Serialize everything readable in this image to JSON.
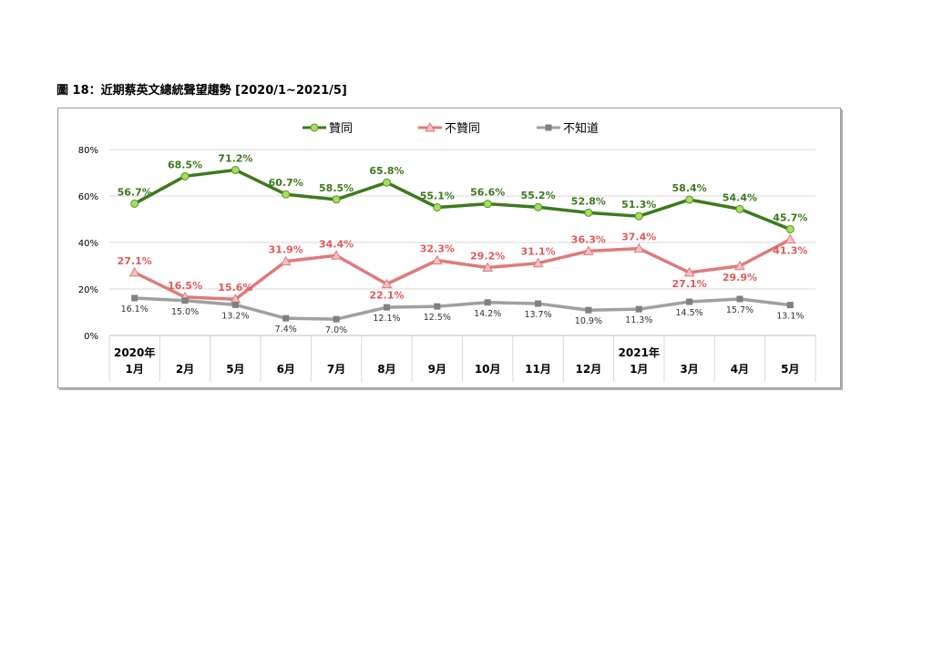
{
  "figure": {
    "title": "圖 18：近期蔡英文總統聲望趨勢  [2020/1~2021/5]"
  },
  "chart_data": {
    "type": "line",
    "title": "圖 18：近期蔡英文總統聲望趨勢  [2020/1~2021/5]",
    "categories": [
      "1月",
      "2月",
      "5月",
      "6月",
      "7月",
      "8月",
      "9月",
      "10月",
      "11月",
      "12月",
      "1月",
      "3月",
      "4月",
      "5月"
    ],
    "year_labels": [
      {
        "index": 0,
        "label": "2020年"
      },
      {
        "index": 10,
        "label": "2021年"
      }
    ],
    "ylim": [
      0,
      80
    ],
    "yticks": [
      "0%",
      "20%",
      "40%",
      "60%",
      "80%"
    ],
    "ytick_values": [
      0,
      20,
      40,
      60,
      80
    ],
    "grid": true,
    "legend_position": "top",
    "series": [
      {
        "name": "贊同",
        "color": "#3d7a1e",
        "marker": "circle",
        "marker_color": "#a6e05a",
        "label_color": "#3d7a1e",
        "values": [
          56.7,
          68.5,
          71.2,
          60.7,
          58.5,
          65.8,
          55.1,
          56.6,
          55.2,
          52.8,
          51.3,
          58.4,
          54.4,
          45.7
        ],
        "labels": [
          "56.7%",
          "68.5%",
          "71.2%",
          "60.7%",
          "58.5%",
          "65.8%",
          "55.1%",
          "56.6%",
          "55.2%",
          "52.8%",
          "51.3%",
          "58.4%",
          "54.4%",
          "45.7%"
        ]
      },
      {
        "name": "不贊同",
        "color": "#e07a7a",
        "marker": "triangle",
        "marker_color": "#f4c2c2",
        "label_color": "#e05a5a",
        "values": [
          27.1,
          16.5,
          15.6,
          31.9,
          34.4,
          22.1,
          32.3,
          29.2,
          31.1,
          36.3,
          37.4,
          27.1,
          29.9,
          41.3
        ],
        "labels": [
          "27.1%",
          "16.5%",
          "15.6%",
          "31.9%",
          "34.4%",
          "22.1%",
          "32.3%",
          "29.2%",
          "31.1%",
          "36.3%",
          "37.4%",
          "27.1%",
          "29.9%",
          "41.3%"
        ]
      },
      {
        "name": "不知道",
        "color": "#a0a0a0",
        "marker": "square",
        "marker_color": "#808080",
        "label_color": "#333333",
        "values": [
          16.1,
          15.0,
          13.2,
          7.4,
          7.0,
          12.1,
          12.5,
          14.2,
          13.7,
          10.9,
          11.3,
          14.5,
          15.7,
          13.1
        ],
        "labels": [
          "16.1%",
          "15.0%",
          "13.2%",
          "7.4%",
          "7.0%",
          "12.1%",
          "12.5%",
          "14.2%",
          "13.7%",
          "10.9%",
          "11.3%",
          "14.5%",
          "15.7%",
          "13.1%"
        ]
      }
    ]
  }
}
